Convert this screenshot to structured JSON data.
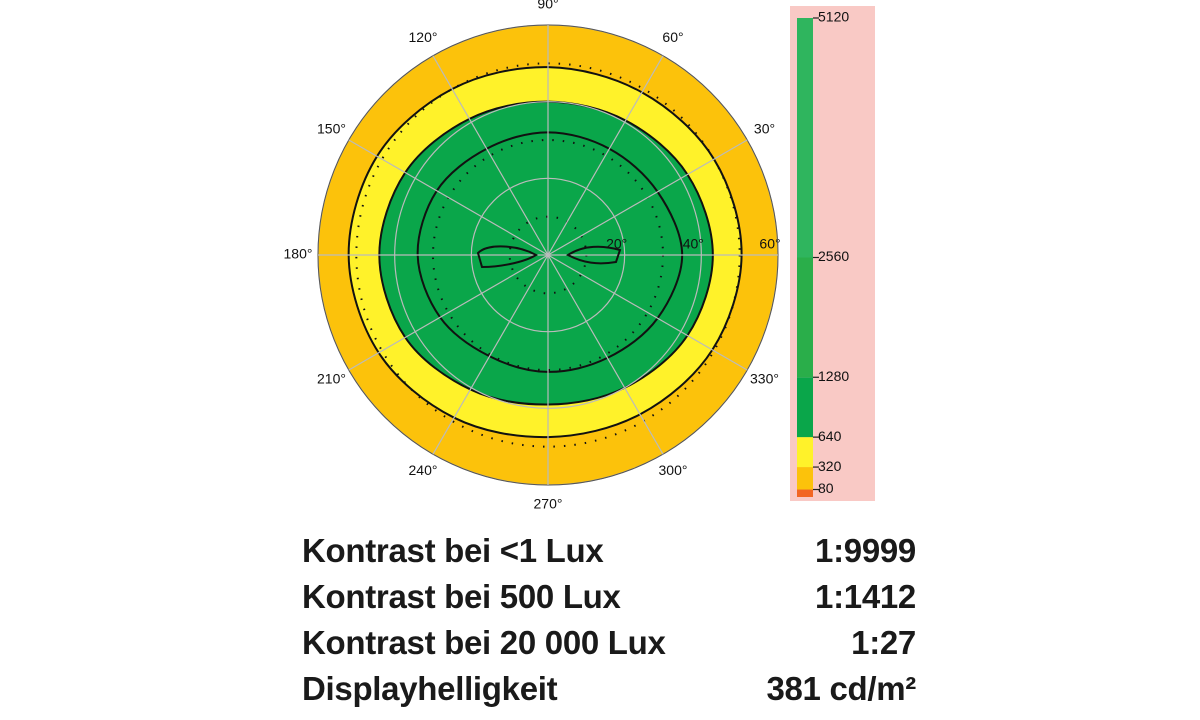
{
  "chart_data": {
    "type": "polar-contour",
    "theta": [
      0,
      30,
      60,
      90,
      120,
      150,
      180,
      210,
      240,
      270,
      300,
      330
    ],
    "rlim": [
      0,
      60
    ],
    "rticks": [
      {
        "value": 20,
        "label": "20°"
      },
      {
        "value": 40,
        "label": "40°"
      },
      {
        "value": 60,
        "label": "60°"
      }
    ],
    "thetaticks": [
      {
        "value": 30,
        "label": "30°"
      },
      {
        "value": 60,
        "label": "60°"
      },
      {
        "value": 90,
        "label": "90°"
      },
      {
        "value": 120,
        "label": "120°"
      },
      {
        "value": 150,
        "label": "150°"
      },
      {
        "value": 180,
        "label": "180°"
      },
      {
        "value": 210,
        "label": "210°"
      },
      {
        "value": 240,
        "label": "240°"
      },
      {
        "value": 270,
        "label": "270°"
      },
      {
        "value": 300,
        "label": "300°"
      },
      {
        "value": 330,
        "label": "330°"
      }
    ],
    "background_color": "#fcc20b",
    "contours": [
      {
        "level": 320,
        "color": "#fff22a",
        "r": [
          50.5,
          50,
          49,
          49,
          50,
          51.5,
          52,
          51,
          49,
          47.5,
          48,
          49.5
        ]
      },
      {
        "level": 640,
        "color": "#0aa64a",
        "r": [
          43,
          42,
          40.5,
          40,
          41,
          43,
          44,
          43,
          40.5,
          39,
          40,
          42
        ]
      },
      {
        "level": 1280,
        "color": "#0aa64a",
        "r": [
          35,
          33,
          32,
          32,
          32,
          33.5,
          34,
          32.5,
          30.5,
          30.5,
          31,
          33
        ]
      }
    ],
    "colorbar": {
      "lim": [
        0,
        5120
      ],
      "ticks": [
        5120,
        2560,
        1280,
        640,
        320,
        80
      ],
      "segments": [
        {
          "from": 0,
          "to": 80,
          "color": "#f26522"
        },
        {
          "from": 80,
          "to": 320,
          "color": "#fcc20b"
        },
        {
          "from": 320,
          "to": 640,
          "color": "#fff22a"
        },
        {
          "from": 640,
          "to": 1280,
          "color": "#0aa64a"
        },
        {
          "from": 1280,
          "to": 2560,
          "color": "#2aae4a"
        },
        {
          "from": 2560,
          "to": 5120,
          "color": "#2fb55e"
        }
      ]
    }
  },
  "table": {
    "rows": [
      [
        "Kontrast bei <1 Lux",
        "1:9999"
      ],
      [
        "Kontrast bei 500 Lux",
        "1:1412"
      ],
      [
        "Kontrast bei 20 000 Lux",
        "1:27"
      ],
      [
        "Displayhelligkeit",
        "381 cd/m²"
      ]
    ]
  }
}
